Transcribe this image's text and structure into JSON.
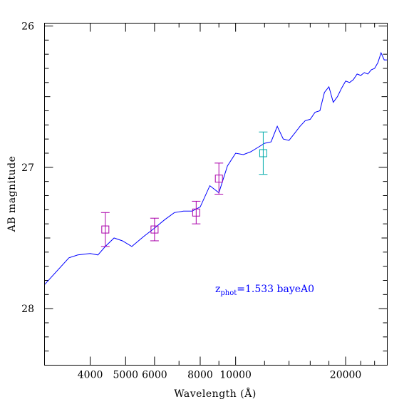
{
  "chart_data": {
    "type": "line",
    "xlabel": "Wavelength (Å)",
    "ylabel": "AB magnitude",
    "x_scale": "log",
    "xlim": [
      3000,
      26000
    ],
    "ylim": [
      28.4,
      25.98
    ],
    "y_inverted": true,
    "xticks_major_labeled": [
      "4000",
      "5000",
      "6000",
      "8000",
      "10000",
      "20000"
    ],
    "yticks_major_labeled": [
      "26",
      "27",
      "28"
    ],
    "grid": false,
    "annotation": {
      "prefix": "z",
      "subscript": "phot",
      "suffix": "=1.533 bayeA0",
      "color": "#0000ff"
    },
    "series": [
      {
        "color": "#0000ff",
        "style": "line",
        "x": [
          3000,
          3500,
          3700,
          4000,
          4200,
          4400,
          4650,
          4900,
          5200,
          5600,
          6000,
          6400,
          6800,
          7200,
          7600,
          8000,
          8500,
          9000,
          9500,
          10000,
          10500,
          11000,
          11500,
          12000,
          12500,
          13000,
          13500,
          14000,
          14500,
          15000,
          15500,
          16000,
          16500,
          17000,
          17500,
          18000,
          18500,
          19000,
          19500,
          20000,
          20500,
          21000,
          21500,
          22000,
          22500,
          23000,
          23500,
          24000,
          24500,
          25000,
          25500,
          26000
        ],
        "y": [
          27.83,
          27.64,
          27.62,
          27.61,
          27.62,
          27.56,
          27.5,
          27.52,
          27.56,
          27.49,
          27.43,
          27.37,
          27.32,
          27.31,
          27.31,
          27.28,
          27.13,
          27.18,
          26.99,
          26.9,
          26.91,
          26.89,
          26.86,
          26.83,
          26.82,
          26.71,
          26.8,
          26.81,
          26.76,
          26.71,
          26.67,
          26.66,
          26.61,
          26.6,
          26.47,
          26.43,
          26.54,
          26.5,
          26.44,
          26.39,
          26.4,
          26.38,
          26.34,
          26.35,
          26.33,
          26.34,
          26.31,
          26.3,
          26.26,
          26.19,
          26.24,
          26.24
        ]
      },
      {
        "color": "#aa00aa",
        "style": "points-errorbars",
        "x": [
          4400,
          6000,
          7800,
          9000
        ],
        "y": [
          27.44,
          27.44,
          27.32,
          27.08
        ],
        "yerr": [
          0.12,
          0.08,
          0.08,
          0.11
        ]
      },
      {
        "color": "#00aaaa",
        "style": "points-errorbars",
        "x": [
          11900
        ],
        "y": [
          26.9
        ],
        "yerr": [
          0.15
        ]
      }
    ]
  }
}
